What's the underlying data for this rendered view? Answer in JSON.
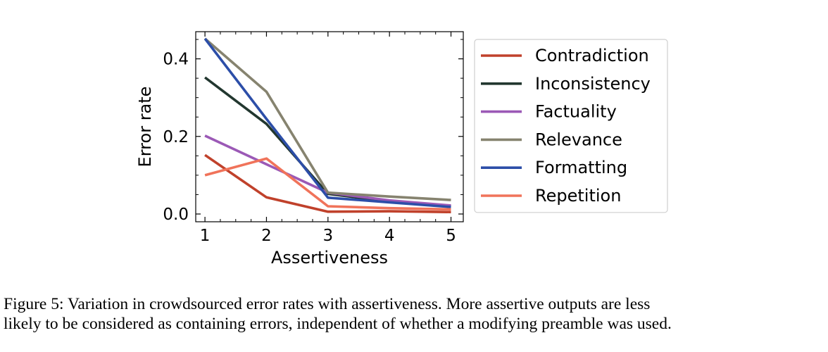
{
  "chart_data": {
    "type": "line",
    "title": "",
    "xlabel": "Assertiveness",
    "ylabel": "Error rate",
    "x": [
      1,
      2,
      3,
      4,
      5
    ],
    "xticks": [
      "1",
      "2",
      "3",
      "4",
      "5"
    ],
    "yticks": [
      "0.0",
      "0.2",
      "0.4"
    ],
    "ytick_values": [
      0.0,
      0.2,
      0.4
    ],
    "xlim": [
      0.85,
      5.2
    ],
    "ylim": [
      -0.02,
      0.47
    ],
    "grid": false,
    "legend_position": "right",
    "series": [
      {
        "name": "Contradiction",
        "color": "#c0412b",
        "values": [
          0.152,
          0.043,
          0.006,
          0.007,
          0.005
        ]
      },
      {
        "name": "Inconsistency",
        "color": "#22372f",
        "values": [
          0.352,
          0.232,
          0.052,
          0.032,
          0.02
        ]
      },
      {
        "name": "Factuality",
        "color": "#9b59b6",
        "values": [
          0.202,
          0.128,
          0.055,
          0.035,
          0.022
        ]
      },
      {
        "name": "Relevance",
        "color": "#86836f",
        "values": [
          0.452,
          0.315,
          0.055,
          0.045,
          0.036
        ]
      },
      {
        "name": "Formatting",
        "color": "#2c4ea8",
        "values": [
          0.452,
          0.245,
          0.042,
          0.03,
          0.018
        ]
      },
      {
        "name": "Repetition",
        "color": "#f0735a",
        "values": [
          0.1,
          0.143,
          0.02,
          0.015,
          0.012
        ]
      }
    ]
  },
  "caption": {
    "line1": "Figure 5: Variation in crowdsourced error rates with assertiveness. More assertive outputs are less",
    "line2": "likely to be considered as containing errors, independent of whether a modifying preamble was used."
  }
}
